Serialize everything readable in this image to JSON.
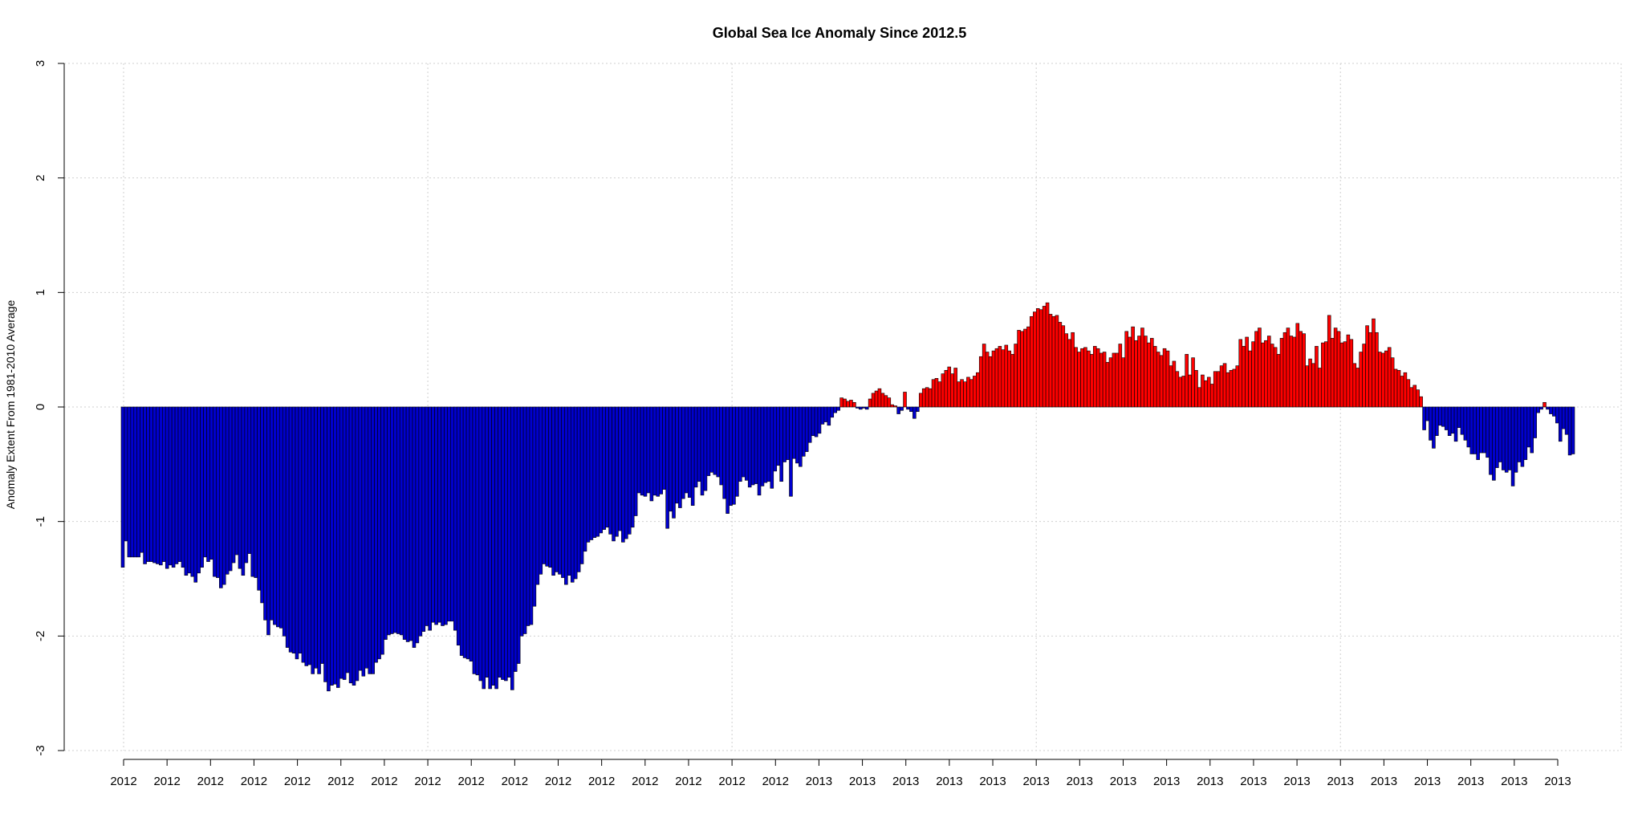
{
  "chart_data": {
    "type": "bar",
    "title": "Global Sea Ice Anomaly Since  2012.5",
    "xlabel": "",
    "ylabel": "Anomaly Extent From 1981-2010 Average",
    "ylim": [
      -3,
      3
    ],
    "y_ticks": [
      3,
      2,
      1,
      0,
      -1,
      -2,
      -3
    ],
    "y_tick_labels": [
      "3",
      "2",
      "1",
      "0",
      "-1",
      "-2",
      "-3"
    ],
    "x_tick_labels": [
      "2012",
      "2012",
      "2012",
      "2012",
      "2012",
      "2012",
      "2012",
      "2012",
      "2012",
      "2012",
      "2012",
      "2012",
      "2012",
      "2012",
      "2012",
      "2012",
      "2013",
      "2013",
      "2013",
      "2013",
      "2013",
      "2013",
      "2013",
      "2013",
      "2013",
      "2013",
      "2013",
      "2013",
      "2013",
      "2013",
      "2013",
      "2013",
      "2013",
      "2013"
    ],
    "grid": true,
    "legend": "none",
    "colors": {
      "positive": "#ff0000",
      "negative": "#0000cd",
      "bar_border": "#000000",
      "grid": "#cfcfcf"
    },
    "values": [
      -1.4,
      -1.17,
      -1.31,
      -1.31,
      -1.31,
      -1.31,
      -1.27,
      -1.37,
      -1.35,
      -1.35,
      -1.36,
      -1.37,
      -1.38,
      -1.35,
      -1.41,
      -1.38,
      -1.4,
      -1.37,
      -1.35,
      -1.4,
      -1.47,
      -1.45,
      -1.48,
      -1.53,
      -1.45,
      -1.4,
      -1.31,
      -1.35,
      -1.33,
      -1.48,
      -1.49,
      -1.58,
      -1.55,
      -1.46,
      -1.43,
      -1.36,
      -1.29,
      -1.41,
      -1.47,
      -1.36,
      -1.28,
      -1.48,
      -1.49,
      -1.6,
      -1.71,
      -1.86,
      -1.99,
      -1.86,
      -1.9,
      -1.92,
      -1.93,
      -2.0,
      -2.1,
      -2.14,
      -2.15,
      -2.2,
      -2.15,
      -2.23,
      -2.26,
      -2.25,
      -2.33,
      -2.28,
      -2.33,
      -2.24,
      -2.4,
      -2.48,
      -2.43,
      -2.42,
      -2.45,
      -2.37,
      -2.38,
      -2.32,
      -2.41,
      -2.43,
      -2.39,
      -2.3,
      -2.35,
      -2.28,
      -2.33,
      -2.33,
      -2.23,
      -2.2,
      -2.16,
      -2.03,
      -1.99,
      -1.98,
      -1.97,
      -1.98,
      -1.99,
      -2.03,
      -2.05,
      -2.04,
      -2.1,
      -2.06,
      -2.0,
      -1.96,
      -1.91,
      -1.95,
      -1.88,
      -1.9,
      -1.88,
      -1.91,
      -1.9,
      -1.87,
      -1.87,
      -1.95,
      -2.08,
      -2.17,
      -2.19,
      -2.2,
      -2.22,
      -2.33,
      -2.34,
      -2.39,
      -2.46,
      -2.36,
      -2.46,
      -2.43,
      -2.46,
      -2.36,
      -2.38,
      -2.39,
      -2.36,
      -2.47,
      -2.31,
      -2.24,
      -2.0,
      -1.98,
      -1.91,
      -1.9,
      -1.74,
      -1.55,
      -1.46,
      -1.37,
      -1.39,
      -1.4,
      -1.47,
      -1.44,
      -1.46,
      -1.49,
      -1.55,
      -1.47,
      -1.53,
      -1.5,
      -1.44,
      -1.37,
      -1.26,
      -1.18,
      -1.16,
      -1.14,
      -1.13,
      -1.1,
      -1.07,
      -1.05,
      -1.11,
      -1.17,
      -1.13,
      -1.08,
      -1.18,
      -1.15,
      -1.11,
      -1.05,
      -0.95,
      -0.75,
      -0.77,
      -0.78,
      -0.75,
      -0.82,
      -0.77,
      -0.78,
      -0.76,
      -0.72,
      -1.06,
      -0.91,
      -0.97,
      -0.84,
      -0.88,
      -0.8,
      -0.75,
      -0.79,
      -0.86,
      -0.7,
      -0.65,
      -0.77,
      -0.73,
      -0.6,
      -0.57,
      -0.59,
      -0.61,
      -0.68,
      -0.8,
      -0.93,
      -0.86,
      -0.85,
      -0.78,
      -0.65,
      -0.61,
      -0.64,
      -0.7,
      -0.68,
      -0.67,
      -0.77,
      -0.69,
      -0.66,
      -0.65,
      -0.71,
      -0.56,
      -0.51,
      -0.65,
      -0.48,
      -0.46,
      -0.78,
      -0.45,
      -0.49,
      -0.52,
      -0.43,
      -0.39,
      -0.31,
      -0.25,
      -0.26,
      -0.23,
      -0.15,
      -0.13,
      -0.16,
      -0.09,
      -0.05,
      -0.03,
      0.08,
      0.07,
      0.05,
      0.06,
      0.04,
      -0.01,
      -0.02,
      -0.01,
      -0.02,
      0.07,
      0.12,
      0.14,
      0.16,
      0.12,
      0.1,
      0.08,
      0.02,
      0.01,
      -0.06,
      -0.03,
      0.13,
      -0.02,
      -0.04,
      -0.1,
      -0.04,
      0.12,
      0.16,
      0.17,
      0.16,
      0.24,
      0.25,
      0.22,
      0.29,
      0.32,
      0.35,
      0.29,
      0.34,
      0.22,
      0.24,
      0.22,
      0.26,
      0.24,
      0.27,
      0.3,
      0.44,
      0.55,
      0.48,
      0.44,
      0.49,
      0.51,
      0.53,
      0.5,
      0.54,
      0.49,
      0.46,
      0.55,
      0.67,
      0.66,
      0.68,
      0.7,
      0.79,
      0.83,
      0.86,
      0.85,
      0.88,
      0.91,
      0.81,
      0.79,
      0.8,
      0.74,
      0.71,
      0.64,
      0.59,
      0.65,
      0.52,
      0.48,
      0.51,
      0.52,
      0.49,
      0.46,
      0.53,
      0.51,
      0.47,
      0.48,
      0.39,
      0.43,
      0.47,
      0.47,
      0.55,
      0.43,
      0.66,
      0.61,
      0.7,
      0.58,
      0.62,
      0.69,
      0.62,
      0.56,
      0.6,
      0.53,
      0.48,
      0.45,
      0.51,
      0.49,
      0.36,
      0.4,
      0.31,
      0.26,
      0.27,
      0.46,
      0.28,
      0.43,
      0.32,
      0.17,
      0.28,
      0.23,
      0.26,
      0.2,
      0.31,
      0.31,
      0.36,
      0.38,
      0.3,
      0.32,
      0.33,
      0.36,
      0.59,
      0.53,
      0.61,
      0.49,
      0.57,
      0.66,
      0.69,
      0.56,
      0.58,
      0.62,
      0.55,
      0.52,
      0.46,
      0.6,
      0.65,
      0.69,
      0.62,
      0.61,
      0.73,
      0.66,
      0.64,
      0.36,
      0.42,
      0.38,
      0.53,
      0.34,
      0.56,
      0.57,
      0.8,
      0.6,
      0.69,
      0.66,
      0.56,
      0.57,
      0.63,
      0.59,
      0.38,
      0.34,
      0.48,
      0.55,
      0.71,
      0.65,
      0.77,
      0.65,
      0.48,
      0.47,
      0.49,
      0.52,
      0.43,
      0.33,
      0.32,
      0.27,
      0.3,
      0.24,
      0.17,
      0.19,
      0.15,
      0.09,
      -0.2,
      -0.12,
      -0.29,
      -0.36,
      -0.25,
      -0.16,
      -0.17,
      -0.2,
      -0.25,
      -0.23,
      -0.3,
      -0.18,
      -0.24,
      -0.29,
      -0.35,
      -0.41,
      -0.41,
      -0.46,
      -0.4,
      -0.4,
      -0.44,
      -0.59,
      -0.64,
      -0.53,
      -0.48,
      -0.55,
      -0.57,
      -0.55,
      -0.69,
      -0.57,
      -0.48,
      -0.52,
      -0.46,
      -0.35,
      -0.4,
      -0.27,
      -0.05,
      -0.02,
      0.04,
      -0.02,
      -0.06,
      -0.08,
      -0.14,
      -0.3,
      -0.19,
      -0.24,
      -0.42,
      -0.41
    ]
  }
}
